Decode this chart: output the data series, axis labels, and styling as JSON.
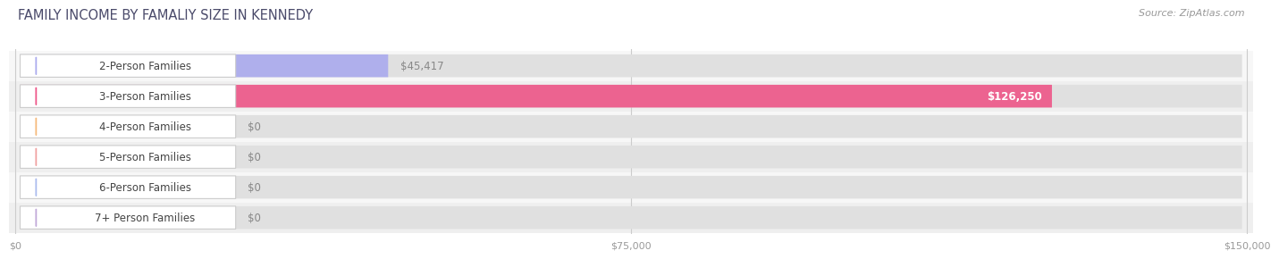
{
  "title": "FAMILY INCOME BY FAMALIY SIZE IN KENNEDY",
  "source": "Source: ZipAtlas.com",
  "categories": [
    "2-Person Families",
    "3-Person Families",
    "4-Person Families",
    "5-Person Families",
    "6-Person Families",
    "7+ Person Families"
  ],
  "values": [
    45417,
    126250,
    0,
    0,
    0,
    0
  ],
  "bar_colors": [
    "#aaaaee",
    "#ee5588",
    "#f5b97a",
    "#f0a0a0",
    "#aabbee",
    "#c0a8d8"
  ],
  "value_labels": [
    "$45,417",
    "$126,250",
    "$0",
    "$0",
    "$0",
    "$0"
  ],
  "value_label_inside": [
    false,
    true,
    false,
    false,
    false,
    false
  ],
  "xmax": 150000,
  "xticks": [
    0,
    75000,
    150000
  ],
  "xticklabels": [
    "$0",
    "$75,000",
    "$150,000"
  ],
  "bg_color": "#ffffff",
  "row_colors": [
    "#f7f7f7",
    "#efefef"
  ],
  "pill_bg_color": "#e8e8e8",
  "title_fontsize": 10.5,
  "source_fontsize": 8,
  "label_fontsize": 8.5,
  "value_fontsize": 8.5
}
